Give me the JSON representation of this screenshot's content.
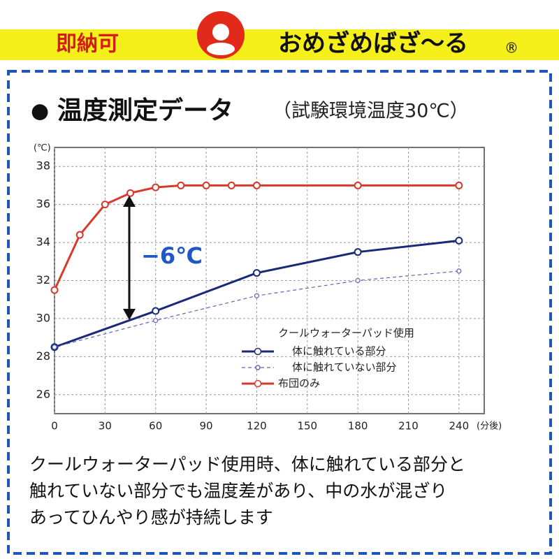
{
  "header": {
    "badge": "即納可",
    "brand": "おめざめばざ〜る",
    "mark": "®"
  },
  "chart_data": {
    "type": "line",
    "title": "温度測定データ",
    "subtitle": "（試験環境温度30℃）",
    "y_unit": "(℃)",
    "x_unit": "(分後)",
    "annotation": "−6℃",
    "legend_title": "クールウォーターパッド使用",
    "xlim": [
      0,
      255
    ],
    "xticks": [
      0,
      30,
      60,
      90,
      120,
      150,
      180,
      210,
      240
    ],
    "ylim": [
      25,
      39
    ],
    "yticks": [
      26,
      28,
      30,
      32,
      34,
      36,
      38
    ],
    "grid": true,
    "series": [
      {
        "name": "体に触れている部分",
        "color": "#1a2a7a",
        "style": "solid",
        "x": [
          0,
          60,
          120,
          180,
          240
        ],
        "values": [
          28.5,
          30.4,
          32.4,
          33.5,
          34.1
        ]
      },
      {
        "name": "体に触れていない部分",
        "color": "#5a66b0",
        "style": "dashed",
        "x": [
          0,
          60,
          120,
          180,
          240
        ],
        "values": [
          28.5,
          29.9,
          31.2,
          32,
          32.5
        ]
      },
      {
        "name": "布団のみ",
        "color": "#d63a2a",
        "style": "solid",
        "x": [
          0,
          15,
          30,
          45,
          60,
          75,
          90,
          105,
          120,
          180,
          240
        ],
        "values": [
          31.5,
          34.4,
          36,
          36.6,
          36.9,
          37,
          37,
          37,
          37,
          37,
          37
        ]
      }
    ]
  },
  "body": {
    "lines": [
      "クールウォーターパッド使用時、体に触れている部分と",
      "触れていない部分でも温度差があり、中の水が混ざり",
      "あってひんやり感が持続します"
    ]
  }
}
